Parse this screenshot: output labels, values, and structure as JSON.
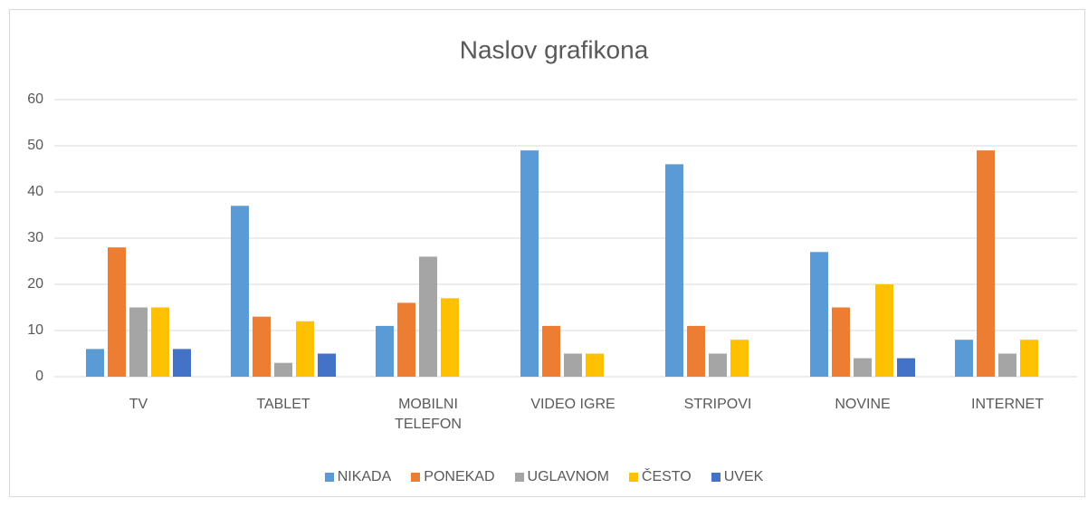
{
  "chart_data": {
    "type": "bar",
    "title": "Naslov grafikona",
    "categories": [
      "TV",
      "TABLET",
      "MOBILNI TELEFON",
      "VIDEO IGRE",
      "STRIPOVI",
      "NOVINE",
      "INTERNET"
    ],
    "series": [
      {
        "name": "NIKADA",
        "color": "#5b9bd5",
        "values": [
          6,
          37,
          11,
          49,
          46,
          27,
          8
        ]
      },
      {
        "name": "PONEKAD",
        "color": "#ed7d31",
        "values": [
          28,
          13,
          16,
          11,
          11,
          15,
          49
        ]
      },
      {
        "name": "UGLAVNOM",
        "color": "#a5a5a5",
        "values": [
          15,
          3,
          26,
          5,
          5,
          4,
          5
        ]
      },
      {
        "name": "ČESTO",
        "color": "#ffc000",
        "values": [
          15,
          12,
          17,
          5,
          8,
          20,
          8
        ]
      },
      {
        "name": "UVEK",
        "color": "#4472c4",
        "values": [
          6,
          5,
          0,
          0,
          0,
          4,
          0
        ]
      }
    ],
    "ylim": [
      0,
      60
    ],
    "yticks": [
      0,
      10,
      20,
      30,
      40,
      50,
      60
    ],
    "grid": true,
    "legend": "bottom"
  }
}
